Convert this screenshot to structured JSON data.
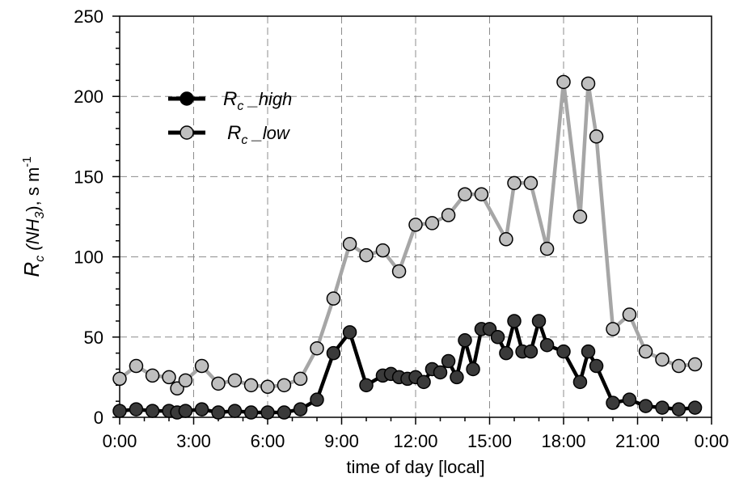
{
  "chart_data": {
    "type": "line",
    "xlabel": "time  of  day [local]",
    "ylabel": {
      "main": "R",
      "sub": "c",
      "mid": "  (NH",
      "sub2": "3",
      "end": "), s m",
      "sup": "-1"
    },
    "x_tick_labels": [
      "0:00",
      "3:00",
      "6:00",
      "9:00",
      "12:00",
      "15:00",
      "18:00",
      "21:00",
      "0:00"
    ],
    "x_tick_hours": [
      0,
      3,
      6,
      9,
      12,
      15,
      18,
      21,
      24
    ],
    "xlim_hours": [
      0,
      24
    ],
    "y_ticks": [
      "0",
      "50",
      "100",
      "150",
      "200",
      "250"
    ],
    "ylim": [
      0,
      250
    ],
    "grid": true,
    "legend_position": "top-left",
    "series": [
      {
        "name": "R",
        "name_sub": "c",
        "name_suffix": " _high",
        "line_color": "#000000",
        "marker_color": "#3a3a3a",
        "x_hours": [
          0.0,
          0.67,
          1.33,
          2.0,
          2.33,
          2.67,
          3.33,
          4.0,
          4.67,
          5.33,
          6.0,
          6.67,
          7.33,
          8.0,
          8.67,
          9.33,
          10.0,
          10.67,
          11.0,
          11.33,
          11.67,
          12.0,
          12.33,
          12.67,
          13.0,
          13.33,
          13.67,
          14.0,
          14.33,
          14.67,
          15.0,
          15.33,
          15.67,
          16.0,
          16.33,
          16.67,
          17.0,
          17.33,
          18.0,
          18.67,
          19.0,
          19.33,
          20.0,
          20.67,
          21.33,
          22.0,
          22.67,
          23.33
        ],
        "values": [
          4,
          5,
          4,
          4,
          3,
          4,
          5,
          3,
          4,
          3,
          3,
          3,
          5,
          11,
          40,
          53,
          20,
          26,
          27,
          25,
          24,
          25,
          22,
          30,
          28,
          35,
          25,
          48,
          30,
          55,
          55,
          50,
          40,
          60,
          41,
          41,
          60,
          45,
          41,
          22,
          41,
          32,
          9,
          11,
          7,
          6,
          5,
          6
        ]
      },
      {
        "name": "R",
        "name_sub": "c",
        "name_suffix": " _low",
        "line_color": "#a6a6a6",
        "marker_color": "#bfbfbf",
        "x_hours": [
          0.0,
          0.67,
          1.33,
          2.0,
          2.33,
          2.67,
          3.33,
          4.0,
          4.67,
          5.33,
          6.0,
          6.67,
          7.33,
          8.0,
          8.67,
          9.33,
          10.0,
          10.67,
          11.33,
          12.0,
          12.67,
          13.33,
          14.0,
          14.67,
          15.67,
          16.0,
          16.67,
          17.33,
          18.0,
          18.67,
          19.0,
          19.33,
          20.0,
          20.67,
          21.33,
          22.0,
          22.67,
          23.33
        ],
        "values": [
          24,
          32,
          26,
          25,
          18,
          23,
          32,
          21,
          23,
          20,
          19,
          20,
          24,
          43,
          74,
          108,
          101,
          104,
          91,
          120,
          121,
          126,
          139,
          139,
          111,
          146,
          146,
          105,
          209,
          125,
          208,
          175,
          55,
          64,
          41,
          36,
          32,
          33
        ]
      }
    ]
  }
}
